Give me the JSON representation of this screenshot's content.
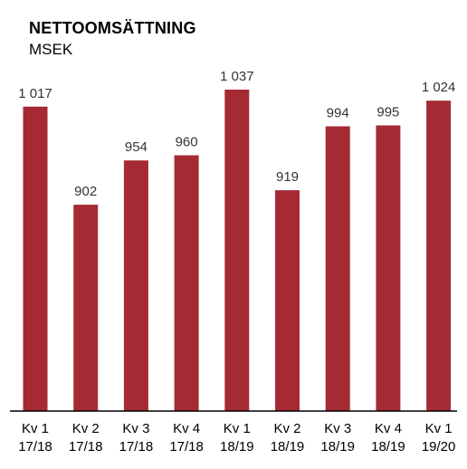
{
  "chart_data": {
    "type": "bar",
    "title": "NETTOOMSÄTTNING",
    "subtitle": "MSEK",
    "categories": [
      [
        "Kv 1",
        "17/18"
      ],
      [
        "Kv 2",
        "17/18"
      ],
      [
        "Kv 3",
        "17/18"
      ],
      [
        "Kv 4",
        "17/18"
      ],
      [
        "Kv 1",
        "18/19"
      ],
      [
        "Kv 2",
        "18/19"
      ],
      [
        "Kv 3",
        "18/19"
      ],
      [
        "Kv 4",
        "18/19"
      ],
      [
        "Kv 1",
        "19/20"
      ]
    ],
    "values": [
      1017,
      902,
      954,
      960,
      1037,
      919,
      994,
      995,
      1024
    ],
    "value_labels": [
      "1 017",
      "902",
      "954",
      "960",
      "1 037",
      "919",
      "994",
      "995",
      "1 024"
    ],
    "xlabel": "",
    "ylabel": "",
    "ylim": [
      660,
      1037
    ],
    "grid": false,
    "legend": "none",
    "bar_color": "#a52a34"
  }
}
